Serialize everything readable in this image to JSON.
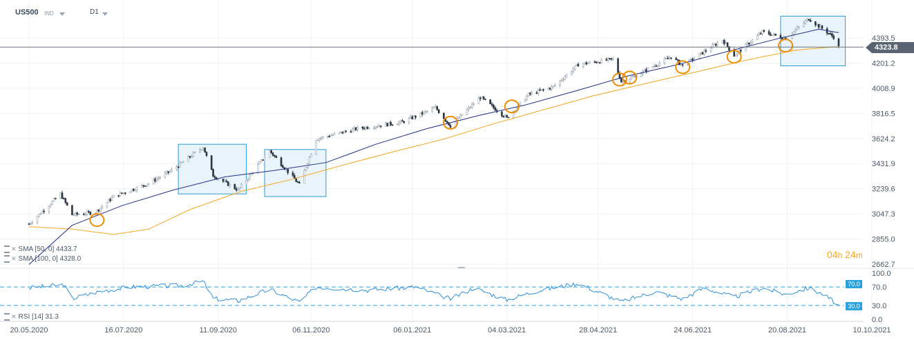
{
  "header": {
    "symbol": "US500",
    "instrument_type": "IND",
    "timeframe": "D1"
  },
  "last_price": "4323.8",
  "countdown": {
    "hours": "04",
    "h_unit": "h",
    "minutes": "24",
    "m_unit": "m"
  },
  "indicators": [
    {
      "label": "SMA [50, 0]",
      "value": "4433.7",
      "color": "#1f2d86"
    },
    {
      "label": "SMA [100, 0]",
      "value": "4328.0",
      "color": "#f5a623"
    }
  ],
  "rsi": {
    "label": "RSI [14]",
    "value": "31.3",
    "color": "#2f8fd8",
    "upper": "70.0",
    "lower": "30.0",
    "ticks": [
      "100.0",
      "70.0",
      "30.0",
      "0.0"
    ]
  },
  "chart_data": {
    "type": "candlestick",
    "y_ticks": [
      4393.5,
      4201.2,
      4008.9,
      3816.5,
      3624.2,
      3431.9,
      3239.6,
      3047.3,
      2855.0,
      2662.7
    ],
    "y_tick_labels": [
      "4393.5",
      "4201.2",
      "4008.9",
      "3816.5",
      "3624.2",
      "3431.9",
      "3239.6",
      "3047.3",
      "2855.0",
      "2662.7"
    ],
    "ylim": [
      2630,
      4560
    ],
    "x_tick_labels": [
      "20.05.2020",
      "16.07.2020",
      "11.09.2020",
      "06.11.2020",
      "06.01.2021",
      "04.03.2021",
      "28.04.2021",
      "24.06.2021",
      "20.08.2021",
      "10.10.2021"
    ],
    "price_path": [
      [
        "2020-05-20",
        2970
      ],
      [
        "2020-06-08",
        3200
      ],
      [
        "2020-06-15",
        3040
      ],
      [
        "2020-06-29",
        3060
      ],
      [
        "2020-07-10",
        3180
      ],
      [
        "2020-07-31",
        3280
      ],
      [
        "2020-08-14",
        3380
      ],
      [
        "2020-09-02",
        3560
      ],
      [
        "2020-09-08",
        3340
      ],
      [
        "2020-09-23",
        3230
      ],
      [
        "2020-10-12",
        3530
      ],
      [
        "2020-10-30",
        3270
      ],
      [
        "2020-11-09",
        3620
      ],
      [
        "2020-12-04",
        3700
      ],
      [
        "2020-12-31",
        3750
      ],
      [
        "2021-01-20",
        3860
      ],
      [
        "2021-01-29",
        3720
      ],
      [
        "2021-02-16",
        3940
      ],
      [
        "2021-03-04",
        3780
      ],
      [
        "2021-03-17",
        3960
      ],
      [
        "2021-04-01",
        4020
      ],
      [
        "2021-04-16",
        4190
      ],
      [
        "2021-05-07",
        4230
      ],
      [
        "2021-05-12",
        4060
      ],
      [
        "2021-05-20",
        4100
      ],
      [
        "2021-06-11",
        4250
      ],
      [
        "2021-06-18",
        4180
      ],
      [
        "2021-07-12",
        4380
      ],
      [
        "2021-07-19",
        4260
      ],
      [
        "2021-08-05",
        4440
      ],
      [
        "2021-08-19",
        4390
      ],
      [
        "2021-09-02",
        4540
      ],
      [
        "2021-09-17",
        4400
      ],
      [
        "2021-09-20",
        4324
      ]
    ],
    "sma50_path": [
      [
        "2020-05-20",
        2660
      ],
      [
        "2020-06-15",
        2960
      ],
      [
        "2020-07-15",
        3110
      ],
      [
        "2020-08-15",
        3230
      ],
      [
        "2020-09-15",
        3330
      ],
      [
        "2020-10-15",
        3380
      ],
      [
        "2020-11-15",
        3440
      ],
      [
        "2020-12-15",
        3580
      ],
      [
        "2021-01-15",
        3700
      ],
      [
        "2021-02-15",
        3800
      ],
      [
        "2021-03-15",
        3880
      ],
      [
        "2021-04-15",
        3990
      ],
      [
        "2021-05-15",
        4100
      ],
      [
        "2021-06-15",
        4190
      ],
      [
        "2021-07-15",
        4290
      ],
      [
        "2021-08-15",
        4390
      ],
      [
        "2021-09-08",
        4460
      ],
      [
        "2021-09-20",
        4433.7
      ]
    ],
    "sma100_path": [
      [
        "2020-05-20",
        2950
      ],
      [
        "2020-06-15",
        2930
      ],
      [
        "2020-07-10",
        2890
      ],
      [
        "2020-07-31",
        2930
      ],
      [
        "2020-08-25",
        3080
      ],
      [
        "2020-09-25",
        3220
      ],
      [
        "2020-10-25",
        3310
      ],
      [
        "2020-11-25",
        3420
      ],
      [
        "2020-12-25",
        3520
      ],
      [
        "2021-01-25",
        3620
      ],
      [
        "2021-02-25",
        3740
      ],
      [
        "2021-03-25",
        3840
      ],
      [
        "2021-04-25",
        3950
      ],
      [
        "2021-05-25",
        4040
      ],
      [
        "2021-06-25",
        4130
      ],
      [
        "2021-07-25",
        4220
      ],
      [
        "2021-08-25",
        4300
      ],
      [
        "2021-09-20",
        4328.0
      ]
    ],
    "rsi_path": [
      [
        "2020-05-20",
        68
      ],
      [
        "2020-06-10",
        75
      ],
      [
        "2020-06-15",
        45
      ],
      [
        "2020-07-01",
        60
      ],
      [
        "2020-07-20",
        70
      ],
      [
        "2020-08-20",
        73
      ],
      [
        "2020-09-02",
        82
      ],
      [
        "2020-09-08",
        45
      ],
      [
        "2020-09-23",
        40
      ],
      [
        "2020-10-12",
        65
      ],
      [
        "2020-10-30",
        37
      ],
      [
        "2020-11-09",
        70
      ],
      [
        "2020-12-10",
        63
      ],
      [
        "2021-01-08",
        70
      ],
      [
        "2021-01-29",
        44
      ],
      [
        "2021-02-12",
        68
      ],
      [
        "2021-03-04",
        42
      ],
      [
        "2021-03-20",
        60
      ],
      [
        "2021-04-16",
        78
      ],
      [
        "2021-05-12",
        38
      ],
      [
        "2021-06-01",
        60
      ],
      [
        "2021-06-18",
        44
      ],
      [
        "2021-07-01",
        68
      ],
      [
        "2021-07-19",
        48
      ],
      [
        "2021-08-05",
        68
      ],
      [
        "2021-08-19",
        54
      ],
      [
        "2021-09-02",
        68
      ],
      [
        "2021-09-10",
        55
      ],
      [
        "2021-09-20",
        31.3
      ]
    ],
    "annotations": {
      "boxes": [
        [
          "2020-08-18",
          "2020-09-28",
          3580,
          3200
        ],
        [
          "2020-10-09",
          "2020-11-15",
          3540,
          3180
        ],
        [
          "2021-08-16",
          "2021-09-24",
          4560,
          4180
        ]
      ],
      "circles": [
        [
          "2020-06-30",
          3000
        ],
        [
          "2021-01-29",
          3745
        ],
        [
          "2021-03-07",
          3870
        ],
        [
          "2021-05-11",
          4075
        ],
        [
          "2021-05-17",
          4090
        ],
        [
          "2021-06-18",
          4170
        ],
        [
          "2021-07-19",
          4250
        ],
        [
          "2021-08-19",
          4335
        ]
      ]
    }
  }
}
